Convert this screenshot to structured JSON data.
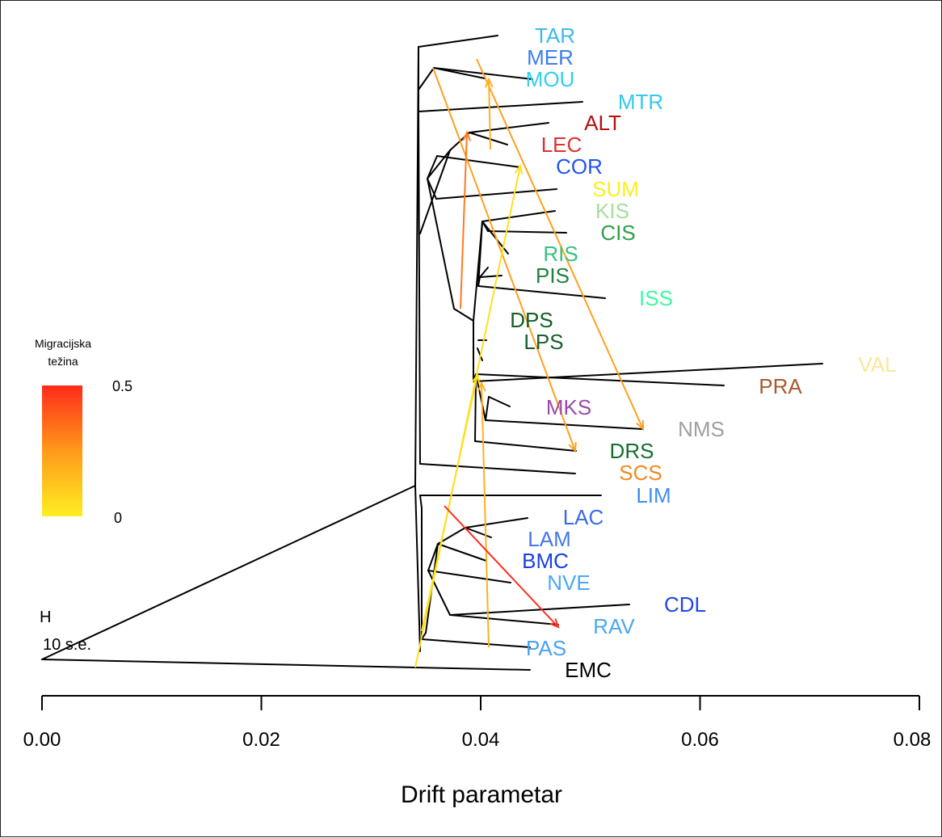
{
  "chart_data": {
    "type": "tree",
    "xlabel": "Drift parametar",
    "xlim": [
      0,
      0.08
    ],
    "x_ticks": [
      0,
      0.02,
      0.04,
      0.06,
      0.08
    ],
    "x_tick_labels": [
      "0.00",
      "0.02",
      "0.04",
      "0.06",
      "0.08"
    ],
    "root_label": "H",
    "scale_label": "10 s.e.",
    "legend": {
      "title_line1": "Migracijska",
      "title_line2": "težina",
      "max_label": "0.5",
      "min_label": "0",
      "color_low": "#ffee22",
      "color_mid": "#ff9a1a",
      "color_high": "#ff2a1a"
    },
    "tips": [
      {
        "label": "TAR",
        "drift": 0.0417,
        "color": "#3fb8f0"
      },
      {
        "label": "MER",
        "drift": 0.0417,
        "color": "#3d7fe8"
      },
      {
        "label": "MOU",
        "drift": 0.0417,
        "color": "#33cff0"
      },
      {
        "label": "MTR",
        "drift": 0.0494,
        "color": "#33c8f0"
      },
      {
        "label": "ALT",
        "drift": 0.0463,
        "color": "#b81010"
      },
      {
        "label": "LEC",
        "drift": 0.0424,
        "color": "#e03030"
      },
      {
        "label": "COR",
        "drift": 0.0424,
        "color": "#2255ee"
      },
      {
        "label": "SUM",
        "drift": 0.0468,
        "color": "#f8f020"
      },
      {
        "label": "KIS",
        "drift": 0.0476,
        "color": "#a8dc9c"
      },
      {
        "label": "CIS",
        "drift": 0.0476,
        "color": "#2e9e4a"
      },
      {
        "label": "RIS",
        "drift": 0.0424,
        "color": "#38c080"
      },
      {
        "label": "PIS",
        "drift": 0.0424,
        "color": "#208040"
      },
      {
        "label": "ISS",
        "drift": 0.0513,
        "color": "#40f8a0"
      },
      {
        "label": "DPS",
        "drift": 0.0394,
        "color": "#105e24"
      },
      {
        "label": "LPS",
        "drift": 0.0394,
        "color": "#175e2c"
      },
      {
        "label": "VAL",
        "drift": 0.0713,
        "color": "#f8e89a"
      },
      {
        "label": "PRA",
        "drift": 0.0623,
        "color": "#a85a2c"
      },
      {
        "label": "MKS",
        "drift": 0.0424,
        "color": "#9a4aaa"
      },
      {
        "label": "NMS",
        "drift": 0.0548,
        "color": "#a0a0a0"
      },
      {
        "label": "DRS",
        "drift": 0.0484,
        "color": "#156e30"
      },
      {
        "label": "SCS",
        "drift": 0.0484,
        "color": "#f08a20"
      },
      {
        "label": "LIM",
        "drift": 0.0509,
        "color": "#3e8ef0"
      },
      {
        "label": "LAC",
        "drift": 0.0443,
        "color": "#3d6ae8"
      },
      {
        "label": "LAM",
        "drift": 0.0413,
        "color": "#4478e8"
      },
      {
        "label": "BMC",
        "drift": 0.0405,
        "color": "#1a3ee0"
      },
      {
        "label": "NVE",
        "drift": 0.0428,
        "color": "#4fa6f0"
      },
      {
        "label": "CDL",
        "drift": 0.0535,
        "color": "#2148e8"
      },
      {
        "label": "RAV",
        "drift": 0.047,
        "color": "#4aa8f0"
      },
      {
        "label": "PAS",
        "drift": 0.0413,
        "color": "#4aa2f0"
      },
      {
        "label": "EMC",
        "drift": 0.0445,
        "color": "#000000"
      }
    ],
    "migration_edges": [
      {
        "weight": 0.28,
        "color": "#ffa020"
      },
      {
        "weight": 0.28,
        "color": "#ffa020"
      },
      {
        "weight": 0.35,
        "color": "#ff7a20"
      },
      {
        "weight": 0.2,
        "color": "#ffb020"
      },
      {
        "weight": 0.05,
        "color": "#ffe020"
      },
      {
        "weight": 0.05,
        "color": "#ffe020"
      },
      {
        "weight": 0.2,
        "color": "#ffb020"
      },
      {
        "weight": 0.45,
        "color": "#ff3020"
      }
    ]
  }
}
